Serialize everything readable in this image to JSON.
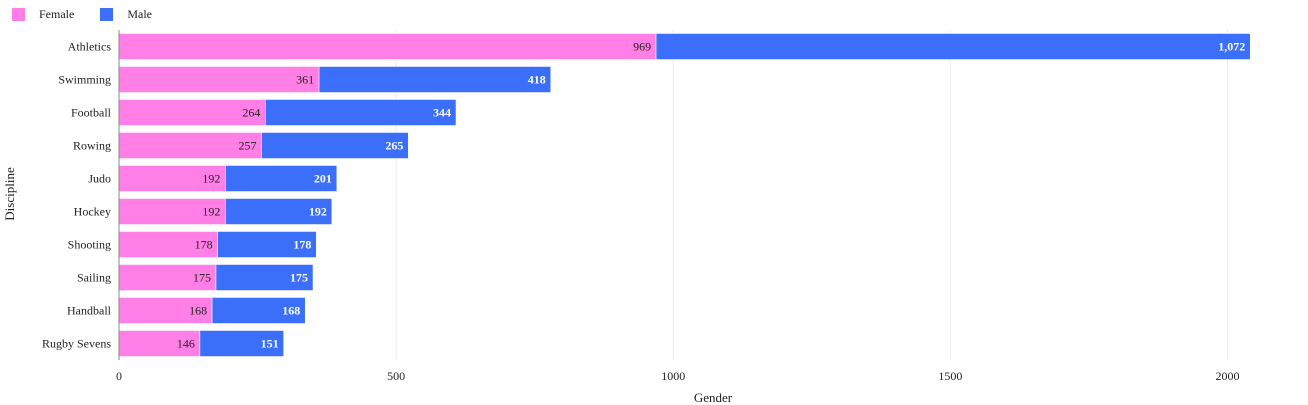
{
  "legend": {
    "items": [
      {
        "label": "Female",
        "color": "#ff7fe6"
      },
      {
        "label": "Male",
        "color": "#3b6ff9"
      }
    ]
  },
  "chart_data": {
    "type": "bar",
    "orientation": "horizontal",
    "stacked": true,
    "title": "",
    "xlabel": "Gender",
    "ylabel": "Discipline",
    "xlim": [
      0,
      2100
    ],
    "x_ticks": [
      0,
      500,
      1000,
      1500,
      2000
    ],
    "x_tick_labels": [
      "0",
      "500",
      "1000",
      "1500",
      "2000"
    ],
    "grid": "vertical",
    "legend_position": "top-left",
    "categories": [
      "Athletics",
      "Swimming",
      "Football",
      "Rowing",
      "Judo",
      "Hockey",
      "Shooting",
      "Sailing",
      "Handball",
      "Rugby Sevens"
    ],
    "series": [
      {
        "name": "Female",
        "color": "#ff7fe6",
        "values": [
          969,
          361,
          264,
          257,
          192,
          192,
          178,
          175,
          168,
          146
        ],
        "labels": [
          "969",
          "361",
          "264",
          "257",
          "192",
          "192",
          "178",
          "175",
          "168",
          "146"
        ]
      },
      {
        "name": "Male",
        "color": "#3b6ff9",
        "values": [
          1072,
          418,
          344,
          265,
          201,
          192,
          178,
          175,
          168,
          151
        ],
        "labels": [
          "1,072",
          "418",
          "344",
          "265",
          "201",
          "192",
          "178",
          "175",
          "168",
          "151"
        ]
      }
    ]
  }
}
